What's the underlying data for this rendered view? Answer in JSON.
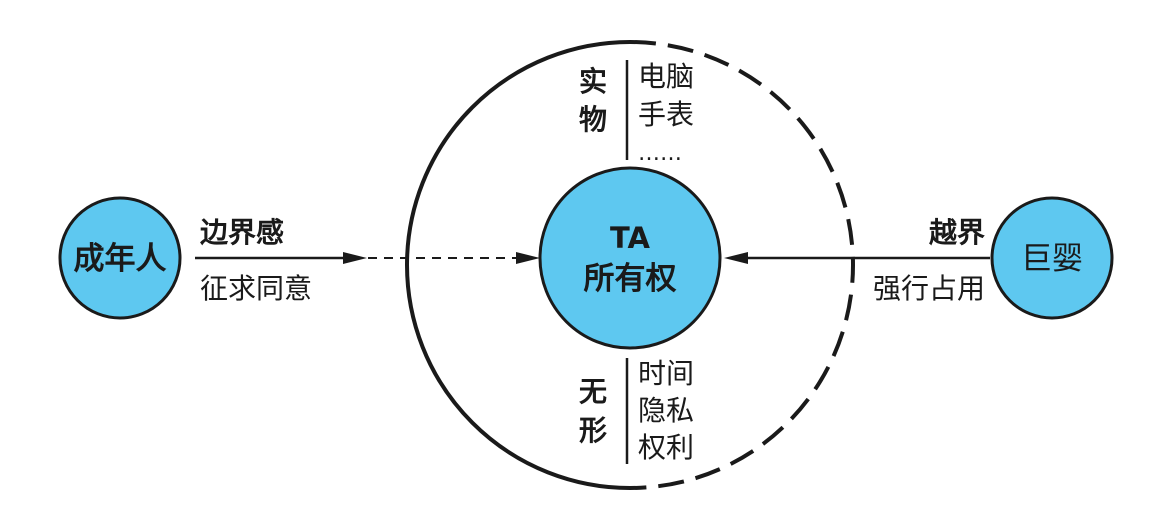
{
  "colors": {
    "node_fill": "#5ec8f0",
    "stroke": "#1a1a1a",
    "background": "#ffffff"
  },
  "left_node": {
    "label": "成年人"
  },
  "left_arrow": {
    "top_label": "边界感",
    "bottom_label": "征求同意"
  },
  "center_node": {
    "line1": "TA",
    "line2": "所有权"
  },
  "right_node": {
    "label": "巨婴"
  },
  "right_arrow": {
    "top_label": "越界",
    "bottom_label": "强行占用"
  },
  "physical_group": {
    "label_chars": [
      "实",
      "物"
    ],
    "items": [
      "电脑",
      "手表",
      "……"
    ]
  },
  "intangible_group": {
    "label_chars": [
      "无",
      "形"
    ],
    "items": [
      "时间",
      "隐私",
      "权利"
    ]
  }
}
